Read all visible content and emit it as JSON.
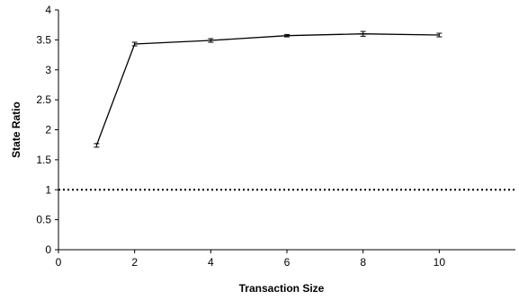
{
  "chart_data": {
    "type": "line",
    "xlabel": "Transaction Size",
    "ylabel": "State Ratio",
    "xlim": [
      0,
      12
    ],
    "ylim": [
      0,
      4
    ],
    "xticks": [
      0,
      2,
      4,
      6,
      8,
      10
    ],
    "xtick_labels": [
      "0",
      "2",
      "4",
      "6",
      "8",
      "10"
    ],
    "yticks": [
      0,
      0.5,
      1,
      1.5,
      2,
      2.5,
      3,
      3.5,
      4
    ],
    "ytick_labels": [
      "0",
      "0.5",
      "1",
      "1.5",
      "2",
      "2.5",
      "3",
      "3.5",
      "4"
    ],
    "grid": false,
    "legend": "none",
    "series": [
      {
        "x": [
          1,
          2,
          4,
          6,
          8,
          10
        ],
        "y": [
          1.74,
          3.43,
          3.49,
          3.57,
          3.6,
          3.58
        ],
        "error": [
          0.03,
          0.03,
          0.03,
          0.02,
          0.04,
          0.03
        ],
        "color": "#000000"
      }
    ],
    "reference_lines": [
      {
        "y": 1,
        "style": "dotted",
        "color": "#000000"
      }
    ]
  }
}
